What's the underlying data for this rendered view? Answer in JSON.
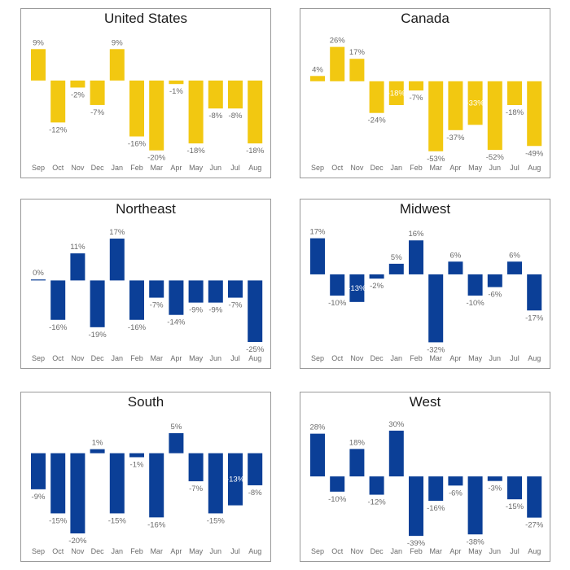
{
  "colors": {
    "yellow": "#f2c811",
    "blue": "#0b3f97"
  },
  "chart_data": [
    {
      "type": "bar",
      "title": "United States",
      "color": "yellow",
      "categories": [
        "Sep",
        "Oct",
        "Nov",
        "Dec",
        "Jan",
        "Feb",
        "Mar",
        "Apr",
        "May",
        "Jun",
        "Jul",
        "Aug"
      ],
      "values": [
        9,
        -12,
        -2,
        -7,
        9,
        -16,
        -20,
        -1,
        -18,
        -8,
        -8,
        -18
      ],
      "labels": [
        "9%",
        "-12%",
        "-2%",
        "-7%",
        "9%",
        "-16%",
        "-20%",
        "-1%",
        "-18%",
        "-8%",
        "-8%",
        "-18%"
      ],
      "ylim": [
        -21,
        10
      ]
    },
    {
      "type": "bar",
      "title": "Canada",
      "color": "yellow",
      "categories": [
        "Sep",
        "Oct",
        "Nov",
        "Dec",
        "Jan",
        "Feb",
        "Mar",
        "Apr",
        "May",
        "Jun",
        "Jul",
        "Aug"
      ],
      "values": [
        4,
        26,
        17,
        -24,
        -18,
        -7,
        -53,
        -37,
        -33,
        -52,
        -18,
        -49
      ],
      "labels": [
        "4%",
        "26%",
        "17%",
        "-24%",
        "-18%",
        "-7%",
        "-53%",
        "-37%",
        "-33%",
        "-52%",
        "-18%",
        "-49%"
      ],
      "inside": [
        false,
        false,
        false,
        false,
        true,
        false,
        false,
        false,
        true,
        false,
        false,
        false
      ],
      "ylim": [
        -55,
        27
      ]
    },
    {
      "type": "bar",
      "title": "Northeast",
      "color": "blue",
      "categories": [
        "Sep",
        "Oct",
        "Nov",
        "Dec",
        "Jan",
        "Feb",
        "Mar",
        "Apr",
        "May",
        "Jun",
        "Jul",
        "Aug"
      ],
      "values": [
        0,
        -16,
        11,
        -19,
        17,
        -16,
        -7,
        -14,
        -9,
        -9,
        -7,
        -25
      ],
      "labels": [
        "0%",
        "-16%",
        "11%",
        "-19%",
        "17%",
        "-16%",
        "-7%",
        "-14%",
        "-9%",
        "-9%",
        "-7%",
        "-25%"
      ],
      "ylim": [
        -26,
        18
      ]
    },
    {
      "type": "bar",
      "title": "Midwest",
      "color": "blue",
      "categories": [
        "Sep",
        "Oct",
        "Nov",
        "Dec",
        "Jan",
        "Feb",
        "Mar",
        "Apr",
        "May",
        "Jun",
        "Jul",
        "Aug"
      ],
      "values": [
        17,
        -10,
        -13,
        -2,
        5,
        16,
        -32,
        6,
        -10,
        -6,
        6,
        -17
      ],
      "labels": [
        "17%",
        "-10%",
        "-13%",
        "-2%",
        "5%",
        "16%",
        "-32%",
        "6%",
        "-10%",
        "-6%",
        "6%",
        "-17%"
      ],
      "inside": [
        false,
        false,
        true,
        false,
        false,
        false,
        false,
        false,
        false,
        false,
        false,
        false
      ],
      "ylim": [
        -33,
        18
      ]
    },
    {
      "type": "bar",
      "title": "South",
      "color": "blue",
      "categories": [
        "Sep",
        "Oct",
        "Nov",
        "Dec",
        "Jan",
        "Feb",
        "Mar",
        "Apr",
        "May",
        "Jun",
        "Jul",
        "Aug"
      ],
      "values": [
        -9,
        -15,
        -20,
        1,
        -15,
        -1,
        -16,
        5,
        -7,
        -15,
        -13,
        -8
      ],
      "labels": [
        "-9%",
        "-15%",
        "-20%",
        "1%",
        "-15%",
        "-1%",
        "-16%",
        "5%",
        "-7%",
        "-15%",
        "-13%",
        "-8%"
      ],
      "inside": [
        false,
        false,
        false,
        false,
        false,
        false,
        false,
        false,
        false,
        false,
        true,
        false
      ],
      "ylim": [
        -21,
        6
      ]
    },
    {
      "type": "bar",
      "title": "West",
      "color": "blue",
      "categories": [
        "Sep",
        "Oct",
        "Nov",
        "Dec",
        "Jan",
        "Feb",
        "Mar",
        "Apr",
        "May",
        "Jun",
        "Jul",
        "Aug"
      ],
      "values": [
        28,
        -10,
        18,
        -12,
        30,
        -39,
        -16,
        -6,
        -38,
        -3,
        -15,
        -27
      ],
      "labels": [
        "28%",
        "-10%",
        "18%",
        "-12%",
        "30%",
        "-39%",
        "-16%",
        "-6%",
        "-38%",
        "-3%",
        "-15%",
        "-27%"
      ],
      "ylim": [
        -40,
        31
      ]
    }
  ]
}
